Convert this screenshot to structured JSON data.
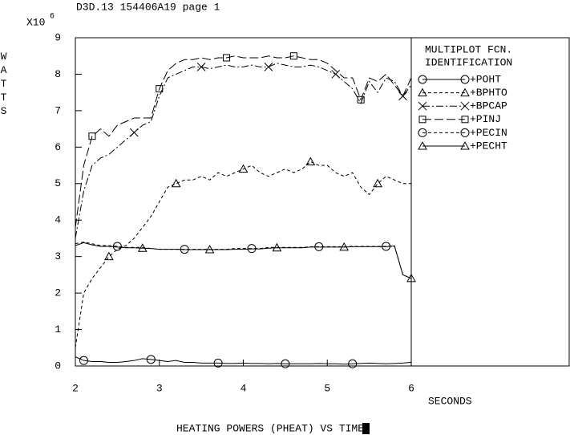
{
  "chart_data": {
    "type": "line",
    "title": "D3D.13 154406A19 page 1",
    "subtitle": "HEATING POWERS (PHEAT) VS TIME",
    "yscale_label": "X10",
    "yscale_exponent": "6",
    "ylabel": "WATTS",
    "xlabel": "SECONDS",
    "legend_title": [
      "MULTIPLOT FCN.",
      "IDENTIFICATION"
    ],
    "xlim": [
      2,
      6
    ],
    "xticks": [
      2,
      3,
      4,
      5,
      6
    ],
    "ylim": [
      0,
      9
    ],
    "yticks": [
      0,
      1,
      2,
      3,
      4,
      5,
      6,
      7,
      8,
      9
    ],
    "x": [
      2.0,
      2.1,
      2.2,
      2.3,
      2.4,
      2.5,
      2.6,
      2.7,
      2.8,
      2.9,
      3.0,
      3.1,
      3.2,
      3.3,
      3.4,
      3.5,
      3.6,
      3.7,
      3.8,
      3.9,
      4.0,
      4.1,
      4.2,
      4.3,
      4.4,
      4.5,
      4.6,
      4.7,
      4.8,
      4.9,
      5.0,
      5.1,
      5.2,
      5.3,
      5.4,
      5.5,
      5.6,
      5.7,
      5.8,
      5.9,
      6.0
    ],
    "series": [
      {
        "name": "+POHT",
        "color": "#000000",
        "marker": "circle",
        "line_style": "solid",
        "values": [
          0.25,
          0.15,
          0.12,
          0.12,
          0.1,
          0.1,
          0.12,
          0.15,
          0.2,
          0.18,
          0.15,
          0.12,
          0.15,
          0.1,
          0.1,
          0.08,
          0.08,
          0.08,
          0.07,
          0.07,
          0.08,
          0.07,
          0.07,
          0.06,
          0.07,
          0.06,
          0.06,
          0.06,
          0.06,
          0.07,
          0.06,
          0.06,
          0.05,
          0.06,
          0.07,
          0.08,
          0.07,
          0.06,
          0.07,
          0.08,
          0.1
        ]
      },
      {
        "name": "+BPHTO",
        "color": "#000000",
        "marker": "triangle",
        "line_style": "dashed",
        "values": [
          0.5,
          2.0,
          2.4,
          2.7,
          3.0,
          3.2,
          3.3,
          3.5,
          3.8,
          4.1,
          4.5,
          4.9,
          5.0,
          5.1,
          5.1,
          5.2,
          5.1,
          5.3,
          5.2,
          5.3,
          5.4,
          5.5,
          5.3,
          5.2,
          5.3,
          5.4,
          5.3,
          5.4,
          5.6,
          5.5,
          5.5,
          5.3,
          5.2,
          5.3,
          4.9,
          4.7,
          5.0,
          5.2,
          5.1,
          5.0,
          5.0
        ]
      },
      {
        "name": "+BPCAP",
        "color": "#000000",
        "marker": "x",
        "line_style": "dashdot",
        "values": [
          3.5,
          4.8,
          5.5,
          5.7,
          5.8,
          6.0,
          6.2,
          6.4,
          6.6,
          6.7,
          7.4,
          7.9,
          8.0,
          8.1,
          8.2,
          8.2,
          8.15,
          8.2,
          8.25,
          8.2,
          8.2,
          8.25,
          8.2,
          8.2,
          8.3,
          8.25,
          8.2,
          8.2,
          8.25,
          8.2,
          8.1,
          8.0,
          7.8,
          7.6,
          7.2,
          7.8,
          7.5,
          7.9,
          7.8,
          7.4,
          7.7
        ]
      },
      {
        "name": "+PINJ",
        "color": "#000000",
        "marker": "square",
        "line_style": "longdash",
        "values": [
          3.8,
          5.5,
          6.3,
          6.5,
          6.3,
          6.6,
          6.7,
          6.8,
          6.8,
          6.8,
          7.6,
          8.1,
          8.3,
          8.4,
          8.4,
          8.45,
          8.4,
          8.45,
          8.45,
          8.5,
          8.45,
          8.45,
          8.45,
          8.5,
          8.45,
          8.45,
          8.5,
          8.45,
          8.4,
          8.4,
          8.3,
          8.1,
          7.9,
          7.9,
          7.3,
          7.9,
          7.8,
          8.0,
          7.7,
          7.4,
          7.9
        ]
      },
      {
        "name": "+PECIN",
        "color": "#000000",
        "marker": "circle",
        "line_style": "dashed",
        "values": [
          3.35,
          3.4,
          3.35,
          3.3,
          3.3,
          3.28,
          3.25,
          3.25,
          3.25,
          3.22,
          3.2,
          3.2,
          3.2,
          3.2,
          3.2,
          3.2,
          3.2,
          3.2,
          3.2,
          3.22,
          3.22,
          3.22,
          3.22,
          3.25,
          3.25,
          3.25,
          3.25,
          3.25,
          3.27,
          3.27,
          3.27,
          3.27,
          3.27,
          3.28,
          3.28,
          3.28,
          3.28,
          3.28,
          3.3,
          2.5,
          2.4
        ]
      },
      {
        "name": "+PECHT",
        "color": "#000000",
        "marker": "triangle",
        "line_style": "solid",
        "values": [
          3.3,
          3.38,
          3.32,
          3.28,
          3.28,
          3.26,
          3.24,
          3.24,
          3.23,
          3.22,
          3.2,
          3.2,
          3.2,
          3.19,
          3.19,
          3.19,
          3.19,
          3.19,
          3.19,
          3.2,
          3.2,
          3.21,
          3.21,
          3.23,
          3.24,
          3.24,
          3.24,
          3.24,
          3.26,
          3.26,
          3.26,
          3.26,
          3.26,
          3.27,
          3.27,
          3.27,
          3.27,
          3.27,
          3.29,
          2.5,
          2.4
        ]
      }
    ]
  }
}
